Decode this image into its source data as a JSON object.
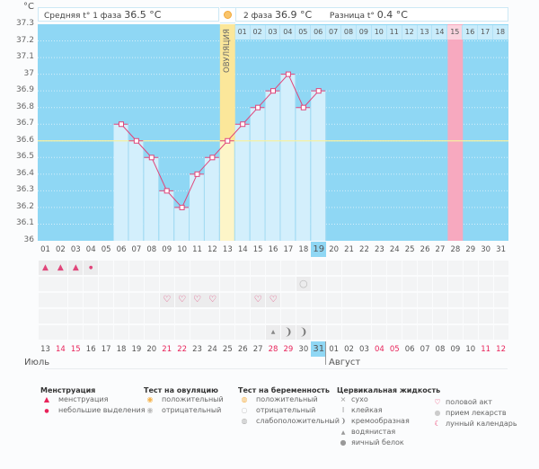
{
  "header": {
    "unit": "°C",
    "phase1_label": "Средняя t° 1 фаза",
    "phase1_value": "36.5 °C",
    "phase2_label": "2 фаза",
    "phase2_value": "36.9 °C",
    "diff_label": "Разница t°",
    "diff_value": "0.4 °C",
    "ovulation_label": "ОВУЛЯЦИЯ"
  },
  "cycle_days_header": [
    "01",
    "02",
    "03",
    "04",
    "05",
    "06",
    "07",
    "08",
    "09",
    "10",
    "11",
    "12",
    "13",
    "14",
    "15",
    "16",
    "17",
    "18"
  ],
  "cycle_days": [
    "01",
    "02",
    "03",
    "04",
    "05",
    "06",
    "07",
    "08",
    "09",
    "10",
    "11",
    "12",
    "13",
    "14",
    "15",
    "16",
    "17",
    "18",
    "19",
    "20",
    "21",
    "22",
    "23",
    "24",
    "25",
    "26",
    "27",
    "28",
    "29",
    "30",
    "31"
  ],
  "calendar_dates": [
    {
      "d": "13",
      "red": false
    },
    {
      "d": "14",
      "red": true
    },
    {
      "d": "15",
      "red": true
    },
    {
      "d": "16",
      "red": false
    },
    {
      "d": "17",
      "red": false
    },
    {
      "d": "18",
      "red": false
    },
    {
      "d": "19",
      "red": false
    },
    {
      "d": "20",
      "red": false
    },
    {
      "d": "21",
      "red": true
    },
    {
      "d": "22",
      "red": true
    },
    {
      "d": "23",
      "red": false
    },
    {
      "d": "24",
      "red": false
    },
    {
      "d": "25",
      "red": false
    },
    {
      "d": "26",
      "red": false
    },
    {
      "d": "27",
      "red": false
    },
    {
      "d": "28",
      "red": true
    },
    {
      "d": "29",
      "red": true
    },
    {
      "d": "30",
      "red": false
    },
    {
      "d": "31",
      "red": false
    },
    {
      "d": "01",
      "red": false
    },
    {
      "d": "02",
      "red": false
    },
    {
      "d": "03",
      "red": false
    },
    {
      "d": "04",
      "red": true
    },
    {
      "d": "05",
      "red": true
    },
    {
      "d": "06",
      "red": false
    },
    {
      "d": "07",
      "red": false
    },
    {
      "d": "08",
      "red": false
    },
    {
      "d": "09",
      "red": false
    },
    {
      "d": "10",
      "red": false
    },
    {
      "d": "11",
      "red": true
    },
    {
      "d": "12",
      "red": true
    }
  ],
  "months": {
    "first": "Июль",
    "second": "Август"
  },
  "today_cycle_day": 19,
  "colors": {
    "plot_bg": "#8fd7f4",
    "bar": "#d3effc",
    "line": "#e0457a",
    "ovulation": "#fbe79a",
    "highlight_pink": "#f7a9bf",
    "coverline": "#f6f0a0"
  },
  "chart_data": {
    "type": "line",
    "title": "",
    "xlabel": "",
    "ylabel": "°C",
    "ylim": [
      36,
      37.3
    ],
    "yticks": [
      "36",
      "36.1",
      "36.2",
      "36.3",
      "36.4",
      "36.5",
      "36.6",
      "36.7",
      "36.8",
      "36.9",
      "37",
      "37.1",
      "37.2",
      "37.3"
    ],
    "coverline": 36.6,
    "ovulation_day": 13,
    "highlight_day": 28,
    "series": [
      {
        "name": "temperature",
        "x": [
          6,
          7,
          8,
          9,
          10,
          11,
          12,
          13,
          14,
          15,
          16,
          17,
          18,
          19
        ],
        "values": [
          36.7,
          36.6,
          36.5,
          36.3,
          36.2,
          36.4,
          36.5,
          36.6,
          36.7,
          36.8,
          36.9,
          37.0,
          36.8,
          36.9
        ]
      }
    ]
  },
  "markers": {
    "menstruation": [
      1,
      2,
      3
    ],
    "spotting": [
      4
    ],
    "pregnancy_test_negative": [
      18
    ],
    "intercourse": [
      9,
      10,
      11,
      12,
      15,
      16
    ],
    "watery": [
      16
    ],
    "creamy": [
      17,
      18
    ]
  },
  "legend": {
    "menstruation": {
      "title": "Менструация",
      "items": [
        "менструация",
        "небольшие выделения"
      ]
    },
    "ovulation_test": {
      "title": "Тест на овуляцию",
      "items": [
        "положительный",
        "отрицательный"
      ]
    },
    "pregnancy_test": {
      "title": "Тест на беременность",
      "items": [
        "положительный",
        "отрицательный",
        "слабоположительный"
      ]
    },
    "cervical": {
      "title": "Цервикальная жидкость",
      "items": [
        "сухо",
        "клейкая",
        "кремообразная",
        "водянистая",
        "яичный белок"
      ]
    },
    "other": {
      "items": [
        "половой акт",
        "прием лекарств",
        "лунный календарь"
      ]
    }
  }
}
